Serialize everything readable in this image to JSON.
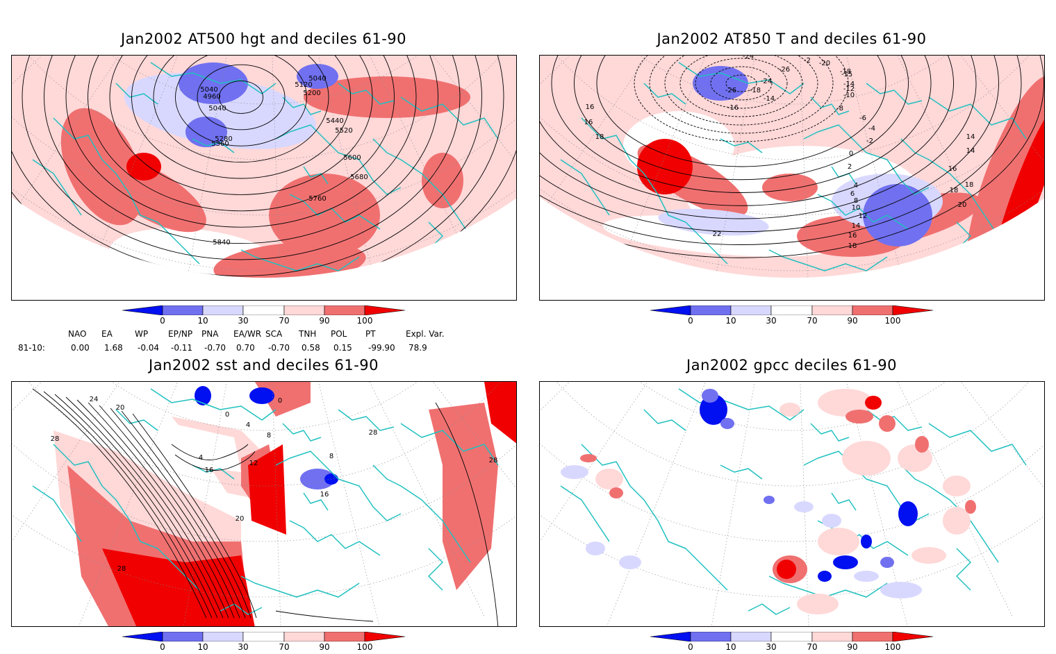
{
  "colors": {
    "dark_blue": "#0010f0",
    "mid_blue": "#7070f0",
    "light_blue": "#d8d8ff",
    "light_red": "#ffd8d8",
    "mid_red": "#f07070",
    "dark_red": "#f00000",
    "coast": "#20c0c0",
    "contour": "#000000"
  },
  "colorbar": {
    "ticks": [
      "0",
      "10",
      "30",
      "70",
      "90",
      "100"
    ]
  },
  "panels": [
    {
      "id": "p1",
      "title": "Jan2002 AT500 hgt and deciles 61-90",
      "contour_labels": [
        "5040",
        "5040",
        "5120",
        "5200",
        "4960",
        "5040",
        "5280",
        "5360",
        "5440",
        "5520",
        "5600",
        "5680",
        "5760",
        "5840"
      ]
    },
    {
      "id": "p2",
      "title": "Jan2002 AT850 T and deciles 61-90",
      "contour_labels": [
        "-24",
        "-26",
        "-2",
        "-20",
        "-18",
        "-15",
        "-14",
        "-12",
        "-10",
        "-8",
        "-6",
        "-4",
        "-2",
        "0",
        "2",
        "4",
        "6",
        "8",
        "10",
        "12",
        "14",
        "16",
        "18",
        "20",
        "22",
        "14",
        "16",
        "16",
        "18",
        "-26",
        "-18",
        "-24",
        "-16",
        "-14",
        "18",
        "16",
        "14",
        "20",
        "18"
      ]
    },
    {
      "id": "p3",
      "title": "Jan2002 sst and deciles 61-90",
      "contour_labels": [
        "28",
        "24",
        "20",
        "28",
        "0",
        "0",
        "4",
        "8",
        "12",
        "16",
        "4",
        "20",
        "28",
        "16",
        "28",
        "28",
        "8"
      ]
    },
    {
      "id": "p4",
      "title": "Jan2002 gpcc deciles 61-90",
      "contour_labels": []
    }
  ],
  "indices": {
    "headers": [
      "NAO",
      "EA",
      "WP",
      "EP/NP",
      "PNA",
      "EA/WR",
      "SCA",
      "TNH",
      "POL",
      "PT",
      "Expl. Var."
    ],
    "row_label": "81-10:",
    "values": [
      "0.00",
      "1.68",
      "-0.04",
      "-0.11",
      "-0.70",
      "0.70",
      "-0.70",
      "0.58",
      "0.15",
      "-99.90",
      "78.9"
    ]
  }
}
